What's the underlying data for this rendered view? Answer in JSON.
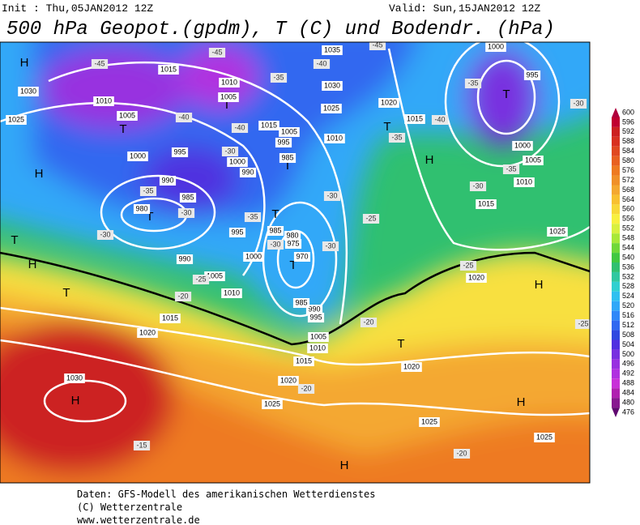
{
  "header": {
    "init": "Init : Thu,05JAN2012 12Z",
    "valid": "Valid: Sun,15JAN2012 12Z",
    "title": "500 hPa Geopot.(gpdm), T (C) und Bodendr. (hPa)"
  },
  "map": {
    "centers": [
      "H",
      "H",
      "H",
      "H",
      "H",
      "H",
      "H",
      "H",
      "T",
      "T",
      "T",
      "T",
      "T",
      "T",
      "T",
      "T",
      "T",
      "T",
      "T"
    ],
    "isobar_labels": [
      1015,
      1030,
      1025,
      1010,
      1005,
      1010,
      1005,
      1000,
      995,
      990,
      985,
      980,
      990,
      995,
      1000,
      1005,
      1010,
      1015,
      1020,
      1030,
      1025,
      1020,
      1015,
      1010,
      1005,
      995,
      990,
      985,
      980,
      975,
      970,
      985,
      985,
      995,
      1005,
      1015,
      1010,
      1030,
      1025,
      1035,
      1020,
      1015,
      1000,
      995,
      1000,
      1005,
      1010,
      1015,
      1025,
      1020,
      1020,
      1025,
      1025,
      1000,
      990
    ],
    "isotherm_labels": [
      -45,
      -45,
      -35,
      -40,
      -45,
      -35,
      -30,
      -40,
      -40,
      -30,
      -35,
      -30,
      -35,
      -30,
      -30,
      -30,
      -25,
      -30,
      -25,
      -20,
      -35,
      -40,
      -35,
      -30,
      -25,
      -20,
      -20,
      -20,
      -15,
      -25
    ]
  },
  "legend": {
    "levels": [
      600,
      596,
      592,
      588,
      584,
      580,
      576,
      572,
      568,
      564,
      560,
      556,
      552,
      548,
      544,
      540,
      536,
      532,
      528,
      524,
      520,
      516,
      512,
      508,
      504,
      500,
      496,
      492,
      488,
      484,
      480,
      476
    ],
    "colors": [
      "#b0003c",
      "#c00030",
      "#cc2020",
      "#d83020",
      "#e04820",
      "#e86020",
      "#ee7a20",
      "#f09028",
      "#f4a830",
      "#f8c030",
      "#f8d838",
      "#f8f040",
      "#d8f040",
      "#a8e838",
      "#70d838",
      "#40c840",
      "#30c070",
      "#30c8a0",
      "#30d0d0",
      "#30c0f0",
      "#30a8f8",
      "#3088f8",
      "#3068f0",
      "#3048e0",
      "#5030e0",
      "#7830e0",
      "#9830e0",
      "#b030e0",
      "#c830d8",
      "#b020b0",
      "#881890",
      "#600870"
    ]
  },
  "footer": {
    "lines": [
      "Daten: GFS-Modell des amerikanischen Wetterdienstes",
      "(C) Wetterzentrale",
      "www.wetterzentrale.de"
    ]
  }
}
